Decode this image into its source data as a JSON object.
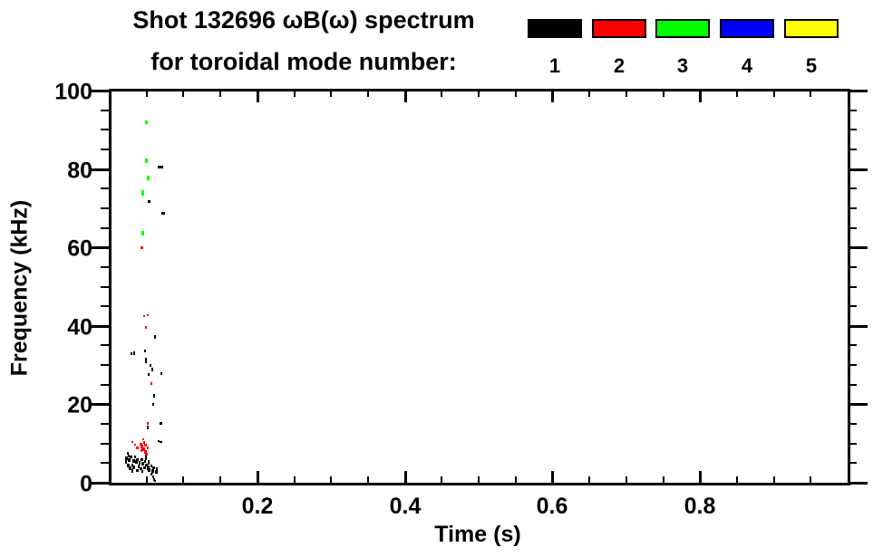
{
  "title": {
    "line1": "Shot 132696 ωB(ω) spectrum",
    "line2": "for toroidal mode number:"
  },
  "legend": {
    "items": [
      {
        "label": "1",
        "color": "#000000"
      },
      {
        "label": "2",
        "color": "#FF0000"
      },
      {
        "label": "3",
        "color": "#00FF00"
      },
      {
        "label": "4",
        "color": "#0000FF"
      },
      {
        "label": "5",
        "color": "#FFFF00"
      }
    ]
  },
  "axes": {
    "xlabel": "Time (s)",
    "ylabel": "Frequency (kHz)"
  },
  "chart_data": {
    "type": "scatter",
    "title": "Shot 132696 ωB(ω) spectrum for toroidal mode number:",
    "xlabel": "Time (s)",
    "ylabel": "Frequency (kHz)",
    "xlim": [
      0,
      1.0
    ],
    "ylim": [
      0,
      100
    ],
    "grid": false,
    "legend_position": "top-right",
    "x_major_ticks": [
      0.2,
      0.4,
      0.6,
      0.8
    ],
    "x_tick_labels": [
      "0.2",
      "0.4",
      "0.6",
      "0.8"
    ],
    "x_minor_step": 0.05,
    "y_major_ticks": [
      0,
      20,
      40,
      60,
      80,
      100
    ],
    "y_tick_labels": [
      "0",
      "20",
      "40",
      "60",
      "80",
      "100"
    ],
    "y_minor_step": 5,
    "series": [
      {
        "name": "1",
        "color": "#000000",
        "points": [
          [
            0.069,
            80.6,
            6,
            3
          ],
          [
            0.054,
            71.6,
            3,
            3
          ],
          [
            0.072,
            68.6,
            4,
            3
          ],
          [
            0.061,
            37.2,
            2,
            4
          ],
          [
            0.033,
            33.0,
            2,
            4
          ],
          [
            0.029,
            32.8,
            2,
            3
          ],
          [
            0.048,
            33.5,
            2,
            3
          ],
          [
            0.049,
            31.2,
            2,
            6
          ],
          [
            0.055,
            30.0,
            2,
            3
          ],
          [
            0.058,
            28.9,
            2,
            4
          ],
          [
            0.07,
            27.9,
            2,
            3
          ],
          [
            0.053,
            27.7,
            2,
            3
          ],
          [
            0.06,
            22.2,
            2,
            4
          ],
          [
            0.059,
            19.9,
            2,
            3
          ],
          [
            0.052,
            14.1,
            2,
            4
          ],
          [
            0.069,
            15.2,
            3,
            3
          ],
          [
            0.069,
            10.4,
            3,
            2
          ],
          [
            0.066,
            10.6,
            2,
            2
          ],
          [
            0.046,
            73.4,
            2,
            2
          ],
          [
            0.022,
            5.5,
            2,
            5
          ],
          [
            0.023,
            6.2,
            3,
            4
          ],
          [
            0.025,
            7.6,
            2,
            3
          ],
          [
            0.026,
            6.9,
            2,
            3
          ],
          [
            0.027,
            5.8,
            3,
            4
          ],
          [
            0.029,
            6.5,
            3,
            3
          ],
          [
            0.032,
            5.5,
            3,
            4
          ],
          [
            0.034,
            6.5,
            2,
            3
          ],
          [
            0.036,
            5.3,
            3,
            4
          ],
          [
            0.038,
            6.0,
            3,
            3
          ],
          [
            0.041,
            5.1,
            2,
            4
          ],
          [
            0.043,
            5.8,
            3,
            3
          ],
          [
            0.045,
            4.8,
            3,
            4
          ],
          [
            0.048,
            5.5,
            2,
            3
          ],
          [
            0.05,
            4.6,
            3,
            3
          ],
          [
            0.025,
            4.4,
            3,
            4
          ],
          [
            0.028,
            3.7,
            3,
            4
          ],
          [
            0.031,
            4.6,
            2,
            3
          ],
          [
            0.033,
            3.9,
            3,
            4
          ],
          [
            0.037,
            3.2,
            3,
            3
          ],
          [
            0.039,
            4.2,
            2,
            4
          ],
          [
            0.042,
            3.5,
            3,
            3
          ],
          [
            0.044,
            2.8,
            2,
            3
          ],
          [
            0.047,
            3.7,
            3,
            3
          ],
          [
            0.049,
            6.5,
            2,
            6
          ],
          [
            0.052,
            3.9,
            3,
            5
          ],
          [
            0.053,
            5.3,
            2,
            5
          ],
          [
            0.054,
            3.2,
            3,
            4
          ],
          [
            0.057,
            4.2,
            2,
            3
          ],
          [
            0.058,
            3.0,
            3,
            4
          ],
          [
            0.06,
            3.7,
            3,
            3
          ],
          [
            0.063,
            2.8,
            3,
            4
          ],
          [
            0.064,
            3.5,
            2,
            3
          ],
          [
            0.031,
            3.0,
            2,
            4
          ],
          [
            0.057,
            2.1,
            2,
            3
          ],
          [
            0.059,
            1.4,
            2,
            3
          ],
          [
            0.06,
            0.9,
            2,
            3
          ],
          [
            0.061,
            0.5,
            2,
            2
          ],
          [
            0.058,
            2.5,
            2,
            2
          ]
        ]
      },
      {
        "name": "2",
        "color": "#FF0000",
        "points": [
          [
            0.044,
            60.0,
            3,
            3
          ],
          [
            0.047,
            42.5,
            2,
            2
          ],
          [
            0.052,
            42.7,
            2,
            2
          ],
          [
            0.049,
            39.5,
            2,
            3
          ],
          [
            0.057,
            25.4,
            2,
            3
          ],
          [
            0.052,
            15.2,
            2,
            3
          ],
          [
            0.031,
            10.4,
            2,
            2
          ],
          [
            0.034,
            9.7,
            2,
            2
          ],
          [
            0.037,
            9.0,
            3,
            3
          ],
          [
            0.045,
            11.1,
            2,
            2
          ],
          [
            0.042,
            9.9,
            3,
            3
          ],
          [
            0.044,
            9.2,
            3,
            4
          ],
          [
            0.046,
            8.5,
            4,
            4
          ],
          [
            0.048,
            7.8,
            3,
            4
          ],
          [
            0.05,
            7.2,
            3,
            3
          ],
          [
            0.047,
            10.2,
            2,
            3
          ],
          [
            0.049,
            9.5,
            3,
            3
          ],
          [
            0.051,
            8.8,
            2,
            3
          ],
          [
            0.043,
            8.1,
            2,
            3
          ]
        ]
      },
      {
        "name": "3",
        "color": "#00FF00",
        "points": [
          [
            0.05,
            91.9,
            3,
            4
          ],
          [
            0.05,
            82.2,
            3,
            5
          ],
          [
            0.052,
            77.6,
            3,
            5
          ],
          [
            0.045,
            73.9,
            3,
            6
          ],
          [
            0.045,
            63.7,
            3,
            5
          ]
        ]
      },
      {
        "name": "4",
        "color": "#0000FF",
        "points": []
      },
      {
        "name": "5",
        "color": "#FFFF00",
        "points": []
      }
    ]
  }
}
